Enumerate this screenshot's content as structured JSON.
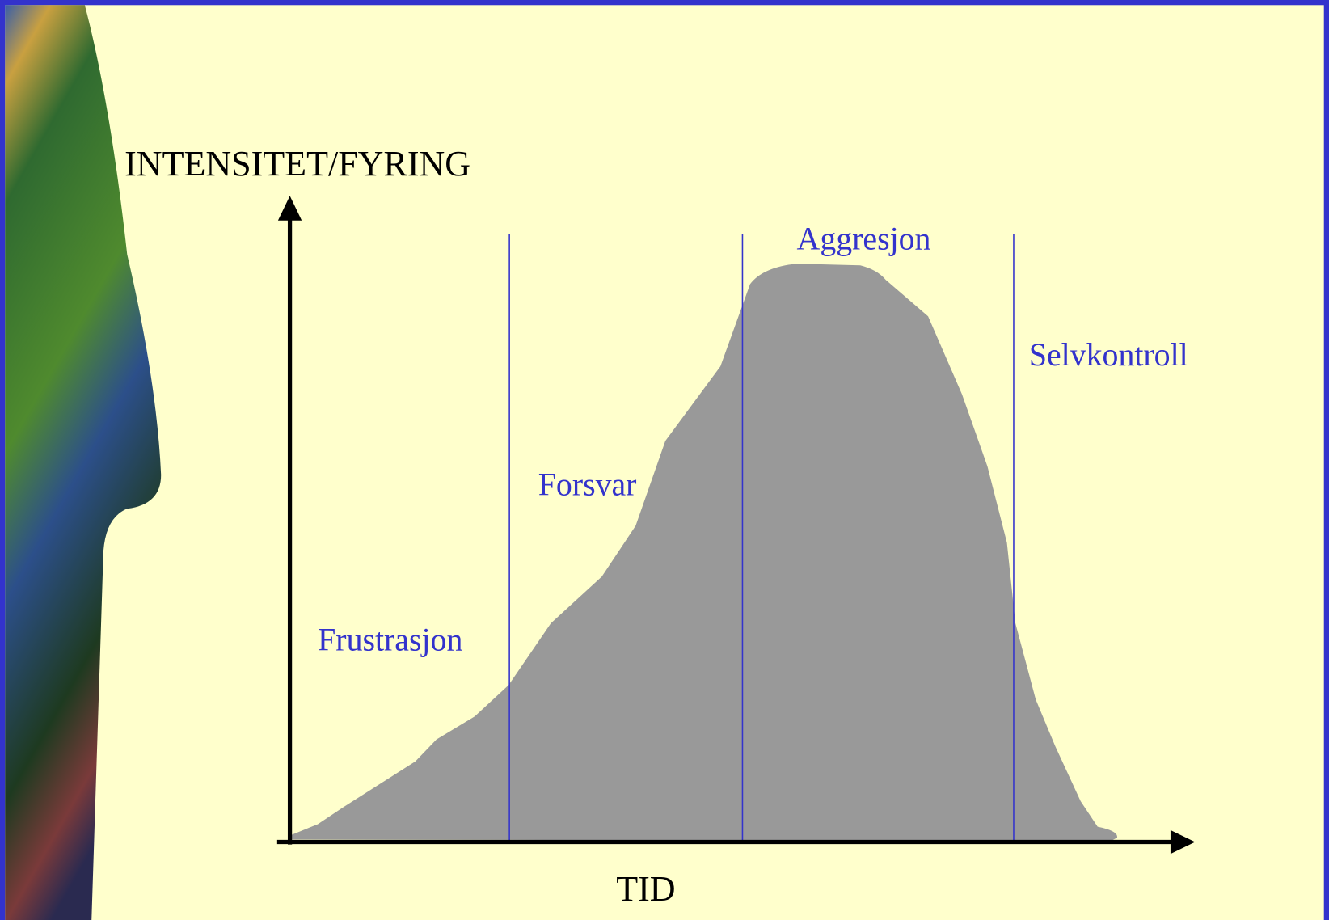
{
  "y_axis_label": "INTENSITET/FYRING",
  "x_axis_label": "TID",
  "phases": [
    "Frustrasjon",
    "Forsvar",
    "Aggresjon",
    "Selvkontroll"
  ]
}
